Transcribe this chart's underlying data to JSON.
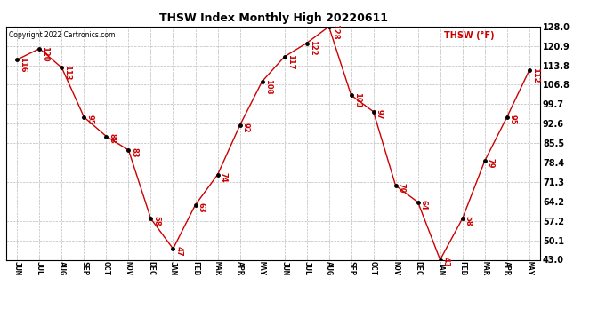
{
  "title": "THSW Index Monthly High 20220611",
  "copyright": "Copyright 2022 Cartronics.com",
  "legend_label": "THSW (°F)",
  "x_labels": [
    "JUN",
    "JUL",
    "AUG",
    "SEP",
    "OCT",
    "NOV",
    "DEC",
    "JAN",
    "FEB",
    "MAR",
    "APR",
    "MAY",
    "JUN",
    "JUL",
    "AUG",
    "SEP",
    "OCT",
    "NOV",
    "DEC",
    "JAN",
    "FEB",
    "MAR",
    "APR",
    "MAY"
  ],
  "values": [
    116,
    120,
    113,
    95,
    88,
    83,
    58,
    47,
    63,
    74,
    92,
    108,
    117,
    122,
    128,
    103,
    97,
    70,
    64,
    43,
    58,
    79,
    95,
    112
  ],
  "ylim_min": 43.0,
  "ylim_max": 128.0,
  "yticks": [
    43.0,
    50.1,
    57.2,
    64.2,
    71.3,
    78.4,
    85.5,
    92.6,
    99.7,
    106.8,
    113.8,
    120.9,
    128.0
  ],
  "line_color": "#cc0000",
  "dot_color": "#000000",
  "label_color": "#cc0000",
  "background_color": "#ffffff",
  "grid_color": "#bbbbbb",
  "title_color": "#000000",
  "copyright_color": "#000000",
  "legend_color": "#cc0000"
}
